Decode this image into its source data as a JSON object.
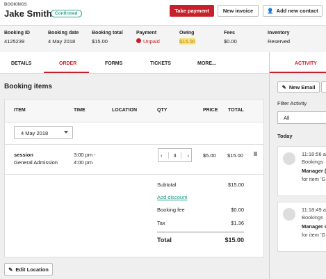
{
  "header": {
    "section": "BOOKINGS",
    "name": "Jake Smith",
    "status": "Confirmed",
    "buttons": [
      "Take payment",
      "New invoice",
      "Add new contact"
    ]
  },
  "summary": [
    {
      "label": "Booking ID",
      "value": "4125239"
    },
    {
      "label": "Booking date",
      "value": "4 May 2018"
    },
    {
      "label": "Booking total",
      "value": "$15.00"
    },
    {
      "label": "Payment",
      "value": "Unpaid"
    },
    {
      "label": "Owing",
      "value": "$15.00"
    },
    {
      "label": "Fees",
      "value": "$0.00"
    },
    {
      "label": "Inventory",
      "value": "Reserved"
    }
  ],
  "tabs": [
    "DETAILS",
    "ORDER",
    "FORMS",
    "TICKETS",
    "MORE..."
  ],
  "side_tab": "ACTIVITY",
  "booking_items": {
    "title": "Booking items",
    "columns": [
      "ITEM",
      "TIME",
      "LOCATION",
      "QTY",
      "PRICE",
      "TOTAL"
    ],
    "date": "4 May 2018",
    "rows": [
      {
        "item": "session",
        "ticket": "General Admission",
        "time_start": "3:00 pm -",
        "time_end": "4:00 pm",
        "qty": "3",
        "price": "$5.00",
        "total": "$15.00"
      }
    ],
    "totals": [
      {
        "label": "Subtotal",
        "value": "$15.00"
      },
      {
        "label": "Booking fee",
        "value": "$0.00"
      },
      {
        "label": "Tax",
        "value": "$1.36"
      },
      {
        "label": "Total",
        "value": "$15.00"
      }
    ],
    "add_discount": "Add discount",
    "edit_location": "Edit Location"
  },
  "activity": {
    "new_email": "New Email",
    "filter_label": "Filter Activity",
    "filter_value": "All",
    "day": "Today",
    "entries": [
      {
        "time": "11:18:56 a",
        "source": "Bookings",
        "actor": "Manager (",
        "detail": "for item 'G"
      },
      {
        "time": "11:18:49 a",
        "source": "Bookings",
        "actor": "Manager c",
        "detail": "for item 'G"
      }
    ]
  }
}
